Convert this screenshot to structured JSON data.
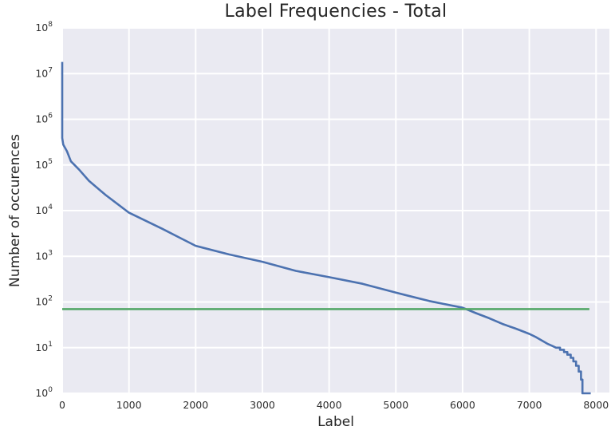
{
  "chart_data": {
    "type": "line",
    "title": "Label Frequencies - Total",
    "xlabel": "Label",
    "ylabel": "Number of occurences",
    "x_ticks": [
      0,
      1000,
      2000,
      3000,
      4000,
      5000,
      6000,
      7000,
      8000
    ],
    "y_tick_exponents": [
      0,
      1,
      2,
      3,
      4,
      5,
      6,
      7,
      8
    ],
    "xlim": [
      0,
      8200
    ],
    "ylim": [
      1,
      100000000
    ],
    "y_scale": "log",
    "grid": true,
    "legend_position": "none",
    "colors": {
      "plot_background": "#eaeaf2",
      "gridline": "#ffffff",
      "figure_background": "#ffffff",
      "text": "#262626",
      "tick_text": "#2e2e2e",
      "frequency_curve": "#4c72b0",
      "threshold_line": "#55a868"
    },
    "series": [
      {
        "name": "label-frequency-curve",
        "color_key": "frequency_curve",
        "points": [
          [
            0,
            18000000
          ],
          [
            0,
            390000
          ],
          [
            15,
            280000
          ],
          [
            70,
            200000
          ],
          [
            130,
            120000
          ],
          [
            250,
            80000
          ],
          [
            400,
            45000
          ],
          [
            650,
            22000
          ],
          [
            1000,
            9000
          ],
          [
            1250,
            6000
          ],
          [
            1500,
            4000
          ],
          [
            1750,
            2600
          ],
          [
            2000,
            1700
          ],
          [
            2500,
            1100
          ],
          [
            3000,
            760
          ],
          [
            3500,
            480
          ],
          [
            4000,
            350
          ],
          [
            4500,
            250
          ],
          [
            5000,
            160
          ],
          [
            5500,
            105
          ],
          [
            6000,
            75
          ],
          [
            6200,
            57
          ],
          [
            6400,
            44
          ],
          [
            6600,
            33
          ],
          [
            6800,
            26
          ],
          [
            7000,
            20
          ],
          [
            7100,
            17
          ],
          [
            7200,
            14
          ],
          [
            7280,
            12
          ],
          [
            7340,
            11
          ],
          [
            7400,
            10
          ],
          [
            7460,
            10
          ],
          [
            7460,
            9
          ],
          [
            7520,
            9
          ],
          [
            7520,
            8
          ],
          [
            7570,
            8
          ],
          [
            7570,
            7
          ],
          [
            7620,
            7
          ],
          [
            7620,
            6
          ],
          [
            7660,
            6
          ],
          [
            7660,
            5
          ],
          [
            7700,
            5
          ],
          [
            7700,
            4
          ],
          [
            7740,
            4
          ],
          [
            7740,
            3
          ],
          [
            7775,
            3
          ],
          [
            7775,
            2
          ],
          [
            7796,
            2
          ],
          [
            7796,
            1
          ],
          [
            7920,
            1
          ]
        ]
      },
      {
        "name": "count-threshold-line",
        "color_key": "threshold_line",
        "points": [
          [
            0,
            70
          ],
          [
            7900,
            70
          ]
        ]
      }
    ]
  }
}
